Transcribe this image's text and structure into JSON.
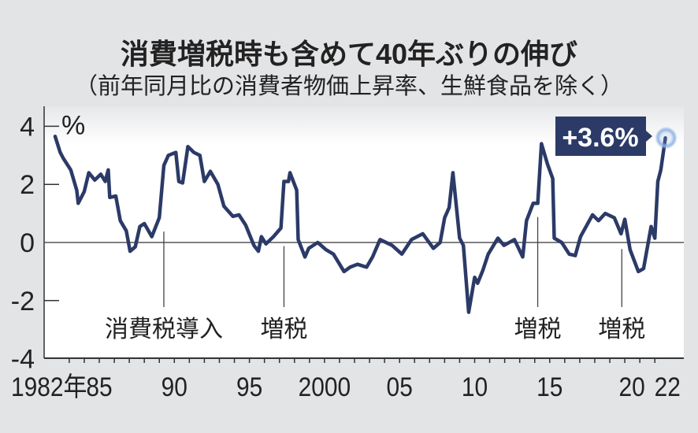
{
  "title": "消費増税時も含めて40年ぶりの伸び",
  "subtitle": "（前年同月比の消費者物価上昇率、生鮮食品を除く）",
  "colors": {
    "line": "#2b3a67",
    "callout_bg": "#2b3a67",
    "highlight": "#8fb4e3",
    "background": "#e3e4e6",
    "plot_bg": "#ffffff"
  },
  "chart_data": {
    "type": "line",
    "title": "消費増税時も含めて40年ぶりの伸び",
    "subtitle": "（前年同月比の消費者物価上昇率、生鮮食品を除く）",
    "xlabel": "",
    "ylabel": "%",
    "ylim": [
      -4,
      4
    ],
    "xlim": [
      1981.3,
      2023.9
    ],
    "yticks": [
      4,
      2,
      0,
      -2,
      -4
    ],
    "ytick_labels": [
      "4",
      "2",
      "0",
      "-2",
      "-4"
    ],
    "y_unit": "%",
    "xtick_labels": [
      {
        "text": "1982年",
        "year": 1982
      },
      {
        "text": "85",
        "year": 1985
      },
      {
        "text": "90",
        "year": 1990
      },
      {
        "text": "95",
        "year": 1995
      },
      {
        "text": "2000",
        "year": 2000
      },
      {
        "text": "05",
        "year": 2005
      },
      {
        "text": "10",
        "year": 2010
      },
      {
        "text": "15",
        "year": 2015
      },
      {
        "text": "20",
        "year": 2020
      },
      {
        "text": "22",
        "year": 2022
      }
    ],
    "grid": false,
    "series": [
      {
        "name": "生鮮食品を除く消費者物価上昇率",
        "points": [
          [
            1982.06,
            3.65
          ],
          [
            1982.4,
            3.1
          ],
          [
            1982.6,
            2.9
          ],
          [
            1983.1,
            2.5
          ],
          [
            1983.5,
            1.8
          ],
          [
            1983.6,
            1.35
          ],
          [
            1984.0,
            1.75
          ],
          [
            1984.3,
            2.4
          ],
          [
            1984.7,
            2.15
          ],
          [
            1985.1,
            2.35
          ],
          [
            1985.4,
            2.1
          ],
          [
            1985.6,
            2.5
          ],
          [
            1985.7,
            1.55
          ],
          [
            1986.1,
            1.6
          ],
          [
            1986.4,
            0.75
          ],
          [
            1986.8,
            0.4
          ],
          [
            1987.05,
            -0.3
          ],
          [
            1987.4,
            -0.15
          ],
          [
            1987.7,
            0.55
          ],
          [
            1988.0,
            0.65
          ],
          [
            1988.5,
            0.2
          ],
          [
            1989.0,
            0.85
          ],
          [
            1989.3,
            2.65
          ],
          [
            1989.6,
            3.0
          ],
          [
            1990.1,
            3.1
          ],
          [
            1990.3,
            2.1
          ],
          [
            1990.55,
            2.05
          ],
          [
            1990.9,
            3.3
          ],
          [
            1991.3,
            3.1
          ],
          [
            1991.7,
            3.0
          ],
          [
            1992.0,
            2.1
          ],
          [
            1992.4,
            2.45
          ],
          [
            1992.9,
            2.0
          ],
          [
            1993.3,
            1.25
          ],
          [
            1993.9,
            0.9
          ],
          [
            1994.3,
            0.95
          ],
          [
            1994.75,
            0.6
          ],
          [
            1995.3,
            -0.1
          ],
          [
            1995.6,
            -0.3
          ],
          [
            1995.8,
            0.2
          ],
          [
            1996.1,
            -0.05
          ],
          [
            1996.6,
            0.2
          ],
          [
            1997.1,
            0.5
          ],
          [
            1997.3,
            2.1
          ],
          [
            1997.6,
            2.1
          ],
          [
            1997.7,
            2.4
          ],
          [
            1998.15,
            1.8
          ],
          [
            1998.25,
            0.1
          ],
          [
            1998.7,
            -0.5
          ],
          [
            1998.95,
            -0.2
          ],
          [
            1999.55,
            0.0
          ],
          [
            2000.1,
            -0.25
          ],
          [
            2000.6,
            -0.4
          ],
          [
            2001.3,
            -1.0
          ],
          [
            2001.7,
            -0.85
          ],
          [
            2002.2,
            -0.75
          ],
          [
            2002.8,
            -0.85
          ],
          [
            2003.2,
            -0.5
          ],
          [
            2003.7,
            0.1
          ],
          [
            2004.5,
            -0.1
          ],
          [
            2005.15,
            -0.4
          ],
          [
            2005.8,
            0.1
          ],
          [
            2006.55,
            0.3
          ],
          [
            2007.25,
            -0.2
          ],
          [
            2007.7,
            0.0
          ],
          [
            2008.0,
            0.85
          ],
          [
            2008.3,
            1.2
          ],
          [
            2008.55,
            2.4
          ],
          [
            2009.0,
            0.15
          ],
          [
            2009.25,
            -0.1
          ],
          [
            2009.6,
            -2.4
          ],
          [
            2010.0,
            -1.2
          ],
          [
            2010.2,
            -1.4
          ],
          [
            2010.55,
            -0.95
          ],
          [
            2010.9,
            -0.4
          ],
          [
            2011.55,
            0.15
          ],
          [
            2011.95,
            -0.1
          ],
          [
            2012.65,
            0.1
          ],
          [
            2013.2,
            -0.5
          ],
          [
            2013.45,
            0.75
          ],
          [
            2013.9,
            1.35
          ],
          [
            2014.2,
            1.35
          ],
          [
            2014.45,
            3.4
          ],
          [
            2014.85,
            2.7
          ],
          [
            2015.2,
            2.2
          ],
          [
            2015.3,
            0.15
          ],
          [
            2015.8,
            0.0
          ],
          [
            2016.3,
            -0.4
          ],
          [
            2016.7,
            -0.45
          ],
          [
            2017.05,
            0.2
          ],
          [
            2017.85,
            0.95
          ],
          [
            2018.25,
            0.75
          ],
          [
            2018.7,
            1.0
          ],
          [
            2019.3,
            0.85
          ],
          [
            2019.75,
            0.3
          ],
          [
            2020.0,
            0.8
          ],
          [
            2020.35,
            -0.25
          ],
          [
            2020.9,
            -1.0
          ],
          [
            2021.25,
            -0.9
          ],
          [
            2021.75,
            0.55
          ],
          [
            2022.0,
            0.15
          ],
          [
            2022.2,
            2.1
          ],
          [
            2022.4,
            2.5
          ],
          [
            2022.7,
            3.6
          ]
        ]
      }
    ],
    "annotations": [
      {
        "text": "消費税導入",
        "year": 1989.3,
        "value": 0.7
      },
      {
        "text": "増税",
        "year": 1997.3,
        "value": 0.2
      },
      {
        "text": "増税",
        "year": 2014.2,
        "value": 1.2
      },
      {
        "text": "増税",
        "year": 2019.8,
        "value": 0.1
      }
    ],
    "callout": {
      "text": "+3.6%",
      "year": 2022.7,
      "value": 3.6
    }
  }
}
